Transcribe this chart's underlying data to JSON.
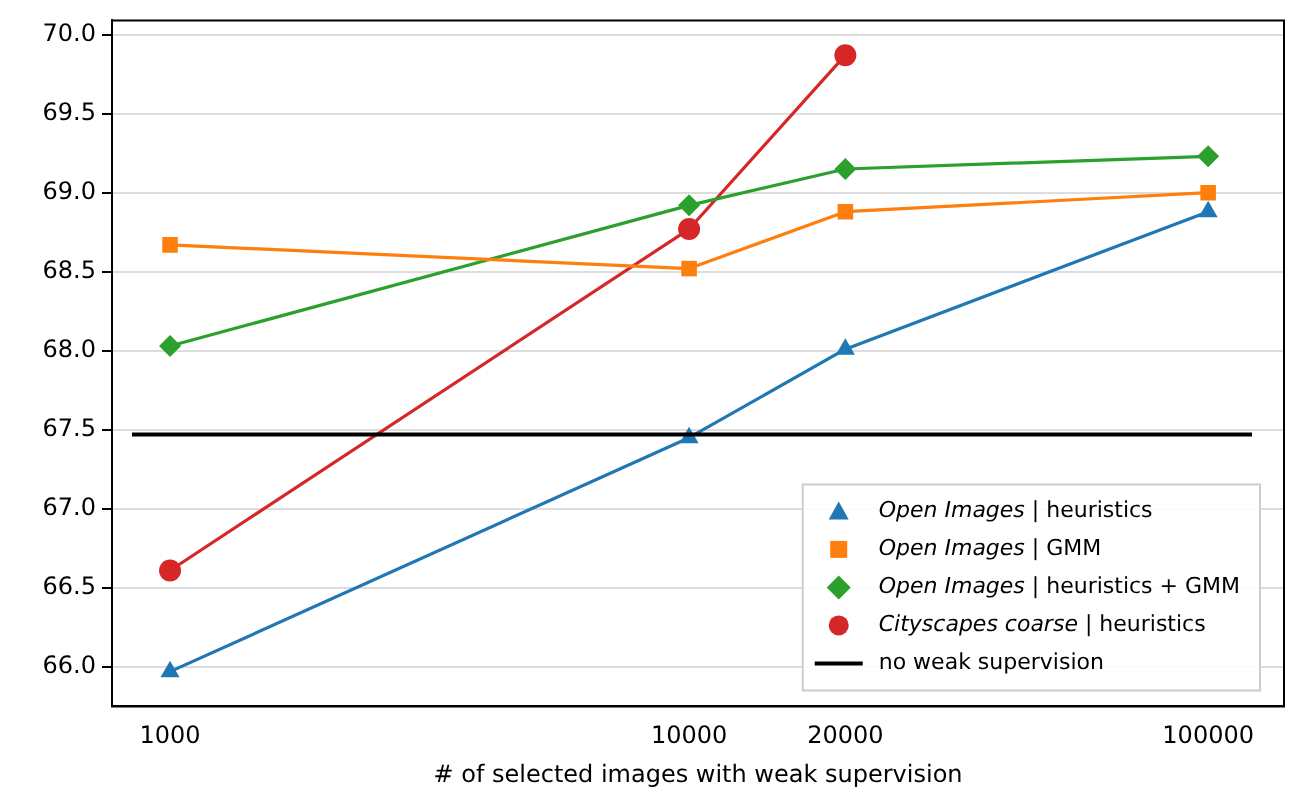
{
  "chart_data": {
    "type": "line",
    "xlabel": "# of selected images with weak supervision",
    "x": [
      1000,
      10000,
      20000,
      100000
    ],
    "series": [
      {
        "name": "Open Images | heuristics",
        "color": "#1f77b4",
        "marker": "triangle",
        "values": [
          65.97,
          67.45,
          68.01,
          68.88
        ]
      },
      {
        "name": "Open Images | GMM",
        "color": "#ff7f0e",
        "marker": "square",
        "values": [
          68.67,
          68.52,
          68.88,
          69.0
        ]
      },
      {
        "name": "Open Images | heuristics + GMM",
        "color": "#2ca02c",
        "marker": "diamond",
        "values": [
          68.03,
          68.92,
          69.15,
          69.23
        ]
      },
      {
        "name": "Cityscapes coarse | heuristics",
        "color": "#d62728",
        "marker": "circle",
        "values": [
          66.61,
          68.77,
          69.87,
          null
        ]
      }
    ],
    "ref_lines": [
      {
        "axis": "y",
        "value": 67.47,
        "label": "no weak supervision",
        "color": "#000000"
      }
    ],
    "log": "x",
    "xlim": [
      773,
      140000
    ],
    "xticks": [
      1000,
      10000,
      20000,
      100000
    ],
    "ylim": [
      65.75,
      70.09
    ],
    "yticks": [
      {
        "value": 66,
        "label": "66.0"
      },
      {
        "value": 66.5,
        "label": "66.5"
      },
      {
        "value": 67,
        "label": "67.0"
      },
      {
        "value": 67.5,
        "label": "67.5"
      },
      {
        "value": 68,
        "label": "68.0"
      },
      {
        "value": 68.5,
        "label": "68.5"
      },
      {
        "value": 69,
        "label": "69.0"
      },
      {
        "value": 69.5,
        "label": "69.5"
      },
      {
        "value": 70,
        "label": "70.0"
      }
    ],
    "grid": "y",
    "legend": "bottom right"
  }
}
